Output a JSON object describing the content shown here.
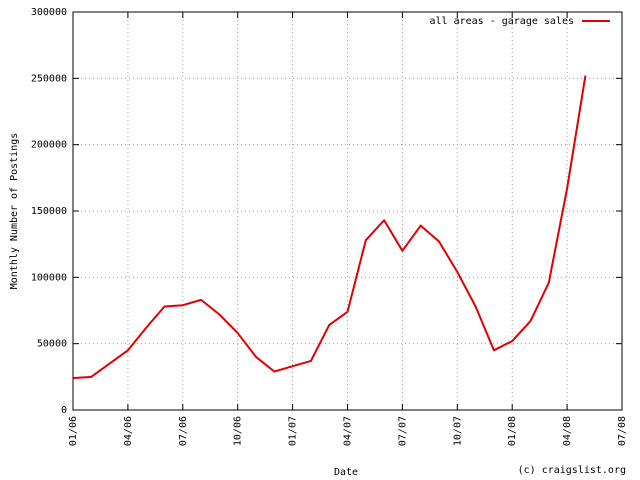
{
  "chart_data": {
    "type": "line",
    "x_label": "Date",
    "y_label": "Monthly Number of Postings",
    "annotation": "(c) craigslist.org",
    "x": [
      "2006-01",
      "2006-02",
      "2006-03",
      "2006-04",
      "2006-05",
      "2006-06",
      "2006-07",
      "2006-08",
      "2006-09",
      "2006-10",
      "2006-11",
      "2006-12",
      "2007-01",
      "2007-02",
      "2007-03",
      "2007-04",
      "2007-05",
      "2007-06",
      "2007-07",
      "2007-08",
      "2007-09",
      "2007-10",
      "2007-11",
      "2007-12",
      "2008-01",
      "2008-02",
      "2008-03",
      "2008-04",
      "2008-05"
    ],
    "series": [
      {
        "name": "all areas - garage sales",
        "color": "#e00000",
        "values": [
          24000,
          25000,
          35000,
          45000,
          62000,
          78000,
          79000,
          83000,
          72000,
          58000,
          40000,
          29000,
          33000,
          37000,
          64000,
          74000,
          128000,
          143000,
          120000,
          139000,
          127000,
          104000,
          78000,
          45000,
          52000,
          67000,
          96000,
          167000,
          252000
        ]
      }
    ],
    "xlim": [
      "2006-01",
      "2008-07"
    ],
    "xticks": [
      {
        "value": "2006-01",
        "label": "01/06"
      },
      {
        "value": "2006-04",
        "label": "04/06"
      },
      {
        "value": "2006-07",
        "label": "07/06"
      },
      {
        "value": "2006-10",
        "label": "10/06"
      },
      {
        "value": "2007-01",
        "label": "01/07"
      },
      {
        "value": "2007-04",
        "label": "04/07"
      },
      {
        "value": "2007-07",
        "label": "07/07"
      },
      {
        "value": "2007-10",
        "label": "10/07"
      },
      {
        "value": "2008-01",
        "label": "01/08"
      },
      {
        "value": "2008-04",
        "label": "04/08"
      },
      {
        "value": "2008-07",
        "label": "07/08"
      }
    ],
    "ylim": [
      0,
      300000
    ],
    "yticks": [
      0,
      50000,
      100000,
      150000,
      200000,
      250000,
      300000
    ],
    "grid": true,
    "legend": "top-right"
  }
}
